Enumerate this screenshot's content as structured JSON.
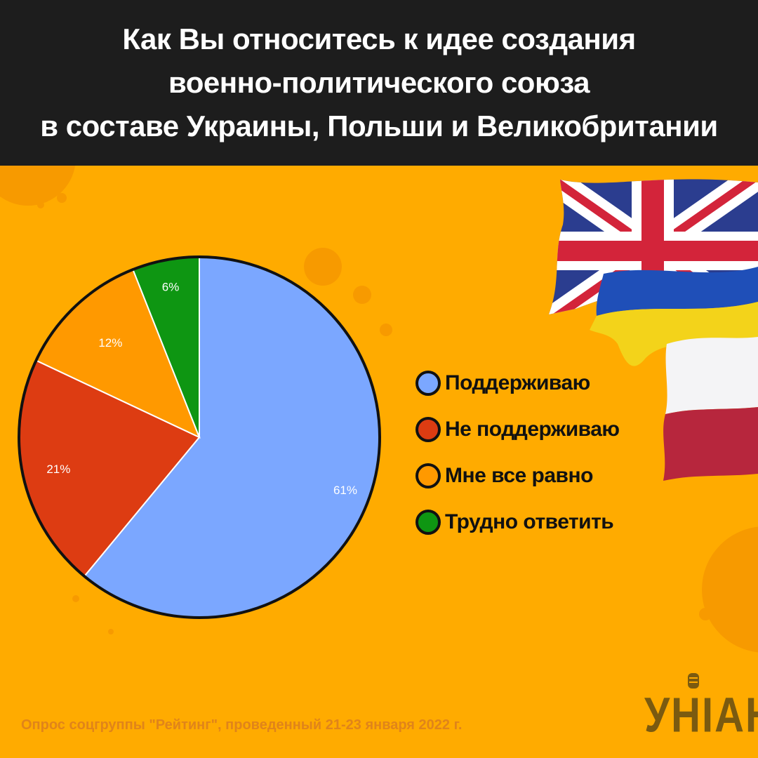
{
  "header": {
    "title_lines": [
      "Как Вы относитесь к идее создания",
      "военно-политического союза",
      "в составе Украины, Польши и Великобритании"
    ]
  },
  "chart_data": {
    "type": "pie",
    "title": "Как Вы относитесь к идее создания военно-политического союза в составе Украины, Польши и Великобритании",
    "categories": [
      "Поддерживаю",
      "Не поддерживаю",
      "Мне все равно",
      "Трудно ответить"
    ],
    "values": [
      61,
      21,
      12,
      6
    ],
    "labels": [
      "61%",
      "21%",
      "12%",
      "6%"
    ],
    "colors": [
      "#7ba7ff",
      "#dd3c12",
      "#ff9900",
      "#0e9612"
    ],
    "start_angle": "12 o'clock",
    "direction": "clockwise",
    "legend": "right"
  },
  "legend": {
    "items": [
      {
        "label": "Поддерживаю",
        "color": "#7ba7ff"
      },
      {
        "label": "Не поддерживаю",
        "color": "#dd3c12"
      },
      {
        "label": "Мне все равно",
        "color": "#ff9900"
      },
      {
        "label": "Трудно ответить",
        "color": "#0e9612"
      }
    ]
  },
  "flags": [
    "uk-flag",
    "ukraine-flag",
    "poland-flag"
  ],
  "footer": {
    "source": "Опрос соцгруппы \"Рейтинг\", проведенный 21-23 января 2022 г.",
    "logo": "УНІАН"
  },
  "colors": {
    "background": "#ffab00",
    "header": "#1d1d1d",
    "decor_circles": "#f79a00"
  }
}
